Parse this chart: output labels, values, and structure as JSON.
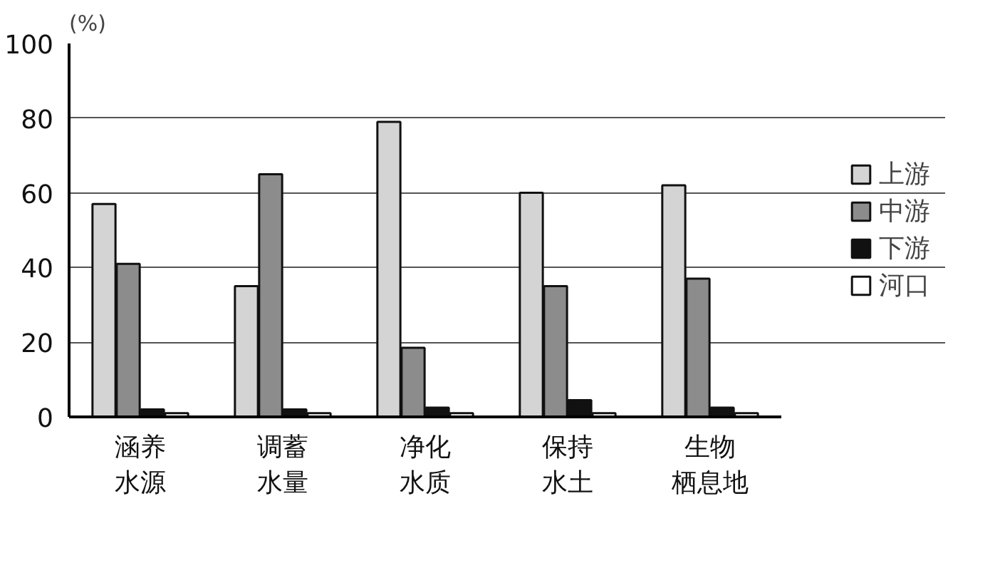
{
  "chart_data": {
    "type": "bar",
    "ylabel": "(%)",
    "categories": [
      "涵养水源",
      "调蓄水量",
      "净化水质",
      "保持水土",
      "生物栖息地"
    ],
    "series": [
      {
        "name": "上游",
        "color": "#d4d4d4",
        "values": [
          57,
          35,
          79,
          60,
          62
        ]
      },
      {
        "name": "中游",
        "color": "#8c8c8c",
        "values": [
          41,
          65,
          18.5,
          35,
          37
        ]
      },
      {
        "name": "下游",
        "color": "#111111",
        "values": [
          2,
          2,
          2.5,
          4.5,
          2.5
        ]
      },
      {
        "name": "河口",
        "color": "#ffffff",
        "values": [
          1,
          1,
          1,
          1,
          1
        ]
      }
    ],
    "ylim": [
      0,
      100
    ],
    "yticks": [
      0,
      20,
      40,
      60,
      80,
      100
    ],
    "grid": "y",
    "legend": "right"
  }
}
